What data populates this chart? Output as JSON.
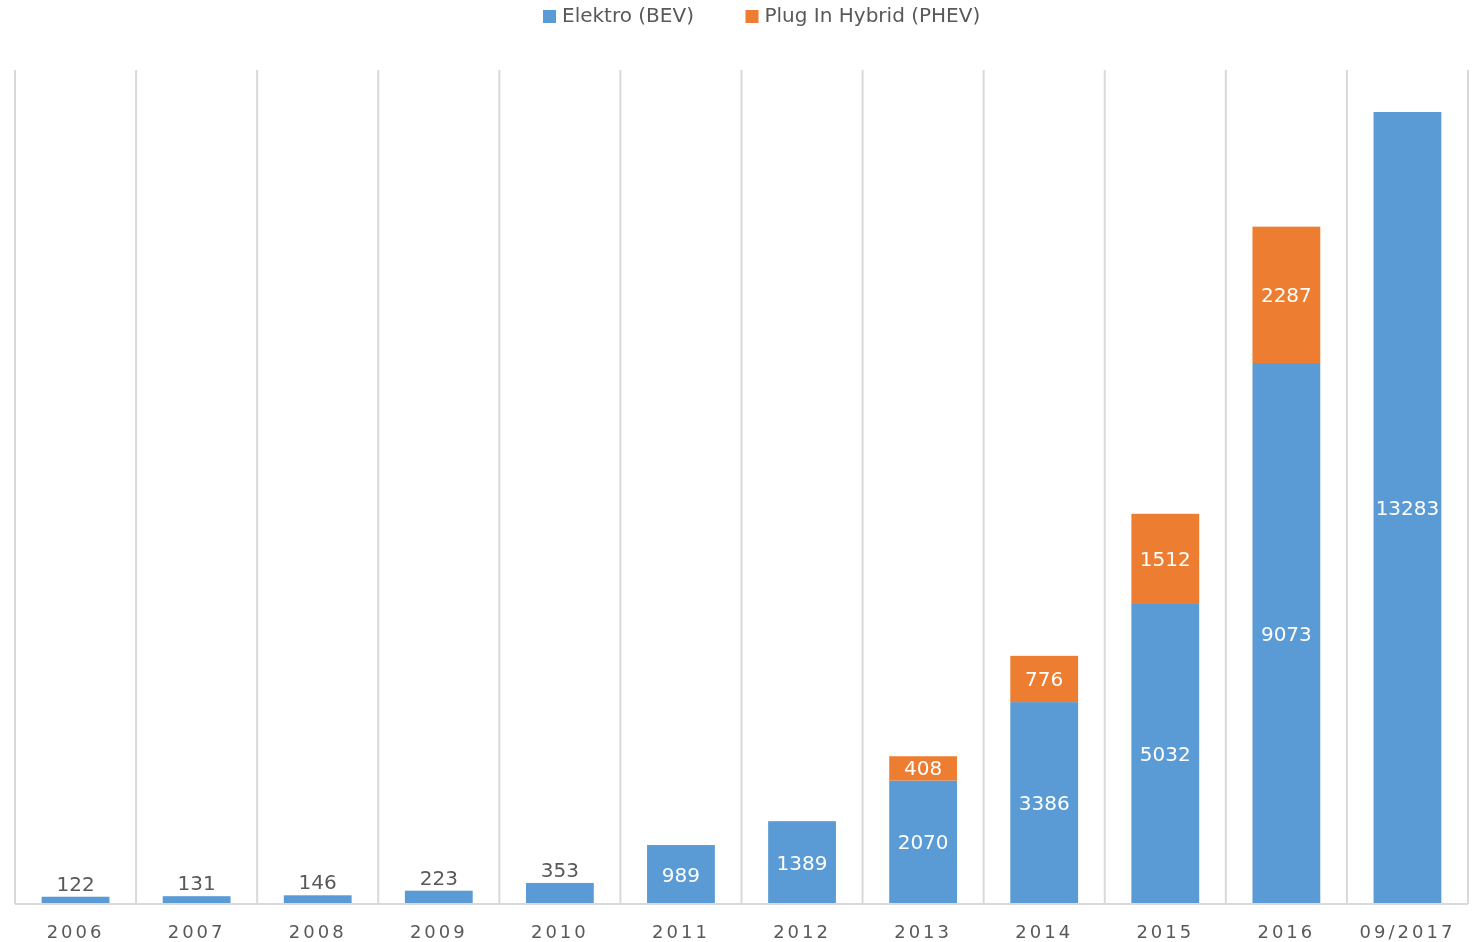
{
  "chart_data": {
    "type": "bar",
    "stacked": true,
    "categories": [
      "2006",
      "2007",
      "2008",
      "2009",
      "2010",
      "2011",
      "2012",
      "2013",
      "2014",
      "2015",
      "2016",
      "09/2017"
    ],
    "series": [
      {
        "name": "Elektro (BEV)",
        "color": "#5b9bd5",
        "values": [
          122,
          131,
          146,
          223,
          353,
          989,
          1389,
          2070,
          3386,
          5032,
          9073,
          13283
        ]
      },
      {
        "name": "Plug In Hybrid (PHEV)",
        "color": "#ed7d31",
        "values": [
          null,
          null,
          null,
          null,
          null,
          null,
          null,
          408,
          776,
          1512,
          2287,
          null
        ]
      }
    ],
    "data_labels": true,
    "legend": "top",
    "grid": "x",
    "tick_labels": "x"
  }
}
